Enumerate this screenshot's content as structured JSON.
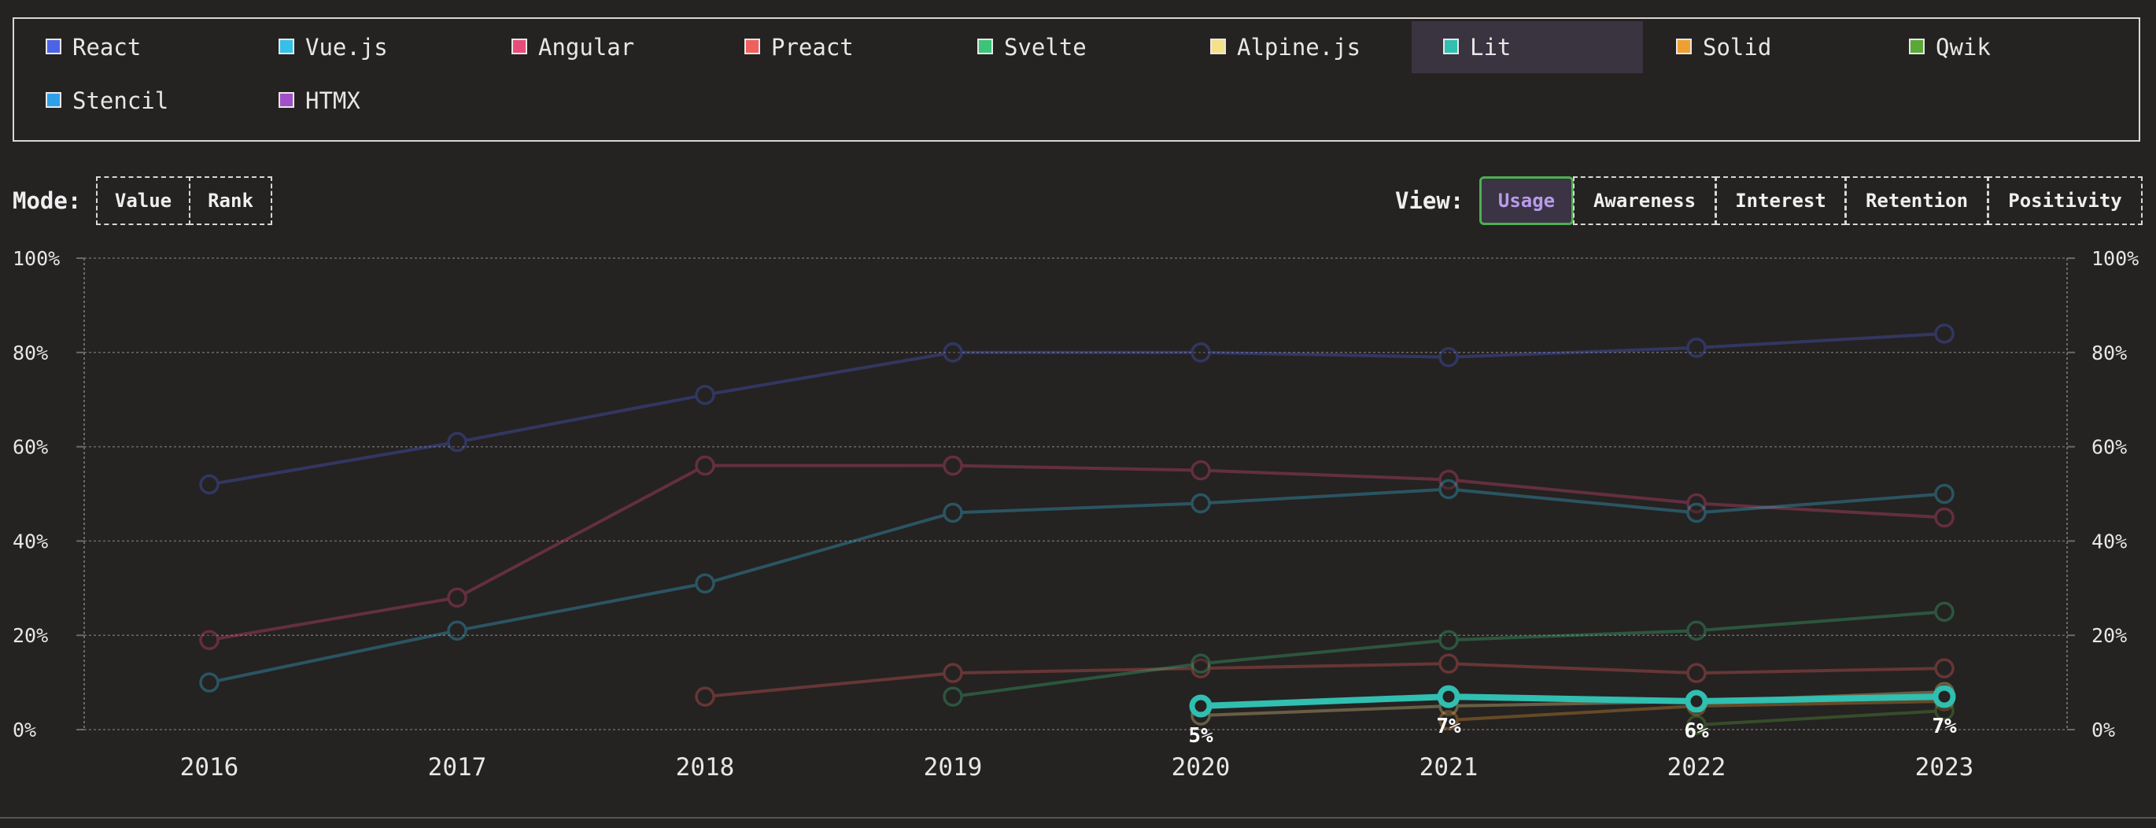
{
  "legend": [
    {
      "name": "React",
      "color": "#4d63e6"
    },
    {
      "name": "Vue.js",
      "color": "#35c0e8"
    },
    {
      "name": "Angular",
      "color": "#e84d7a"
    },
    {
      "name": "Preact",
      "color": "#f0605d"
    },
    {
      "name": "Svelte",
      "color": "#3cc47a"
    },
    {
      "name": "Alpine.js",
      "color": "#f5e08c"
    },
    {
      "name": "Lit",
      "color": "#30bfb0",
      "active": true
    },
    {
      "name": "Solid",
      "color": "#f0a030"
    },
    {
      "name": "Qwik",
      "color": "#5aa838"
    },
    {
      "name": "Stencil",
      "color": "#2ea0e8"
    },
    {
      "name": "HTMX",
      "color": "#a050c8"
    }
  ],
  "mode": {
    "label": "Mode:",
    "options": [
      "Value",
      "Rank"
    ]
  },
  "view": {
    "label": "View:",
    "options": [
      "Usage",
      "Awareness",
      "Interest",
      "Retention",
      "Positivity"
    ],
    "selected": "Usage"
  },
  "chart_data": {
    "type": "line",
    "x": [
      "2016",
      "2017",
      "2018",
      "2019",
      "2020",
      "2021",
      "2022",
      "2023"
    ],
    "ylim": [
      0,
      100
    ],
    "yticks": [
      "0%",
      "20%",
      "40%",
      "60%",
      "80%",
      "100%"
    ],
    "grid": true,
    "highlighted_series": "Lit",
    "series": [
      {
        "name": "React",
        "color": "#4d63e6",
        "values": [
          52,
          61,
          71,
          80,
          80,
          79,
          81,
          84
        ]
      },
      {
        "name": "Angular",
        "color": "#e84d7a",
        "values": [
          19,
          28,
          56,
          56,
          55,
          53,
          48,
          45
        ]
      },
      {
        "name": "Vue.js",
        "color": "#35c0e8",
        "values": [
          10,
          21,
          31,
          46,
          48,
          51,
          46,
          50
        ]
      },
      {
        "name": "Preact",
        "color": "#f0605d",
        "values": [
          null,
          null,
          7,
          12,
          13,
          14,
          12,
          13
        ]
      },
      {
        "name": "Svelte",
        "color": "#3cc47a",
        "values": [
          null,
          null,
          null,
          7,
          14,
          19,
          21,
          25
        ]
      },
      {
        "name": "Alpine.js",
        "color": "#f5e08c",
        "values": [
          null,
          null,
          null,
          null,
          3,
          5,
          6,
          8
        ]
      },
      {
        "name": "Solid",
        "color": "#f0a030",
        "values": [
          null,
          null,
          null,
          null,
          null,
          2,
          5,
          6
        ]
      },
      {
        "name": "Qwik",
        "color": "#5aa838",
        "values": [
          null,
          null,
          null,
          null,
          null,
          null,
          1,
          4
        ]
      },
      {
        "name": "Lit",
        "color": "#30bfb0",
        "values": [
          null,
          null,
          null,
          null,
          5,
          7,
          6,
          7
        ],
        "labels": [
          "5%",
          "7%",
          "6%",
          "7%"
        ]
      }
    ]
  }
}
